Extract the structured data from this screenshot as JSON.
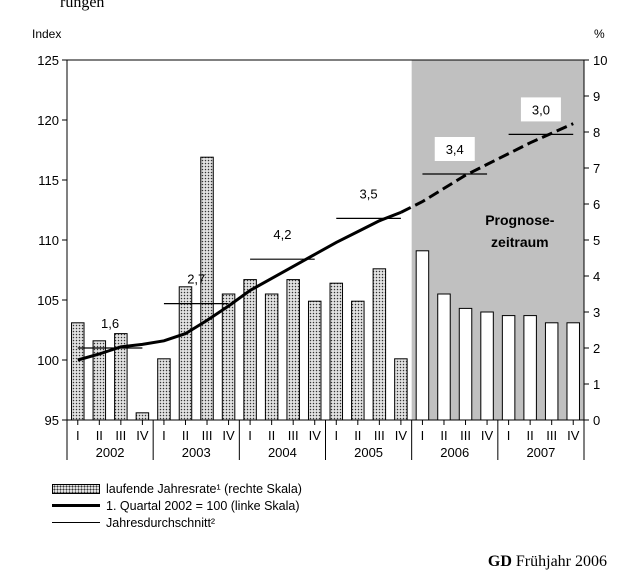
{
  "header_text": "rungen",
  "chart_data": {
    "type": "bar+line",
    "left_axis": {
      "unit": "Index",
      "ylim": [
        95,
        125
      ],
      "ticks": [
        95,
        100,
        105,
        110,
        115,
        120,
        125
      ]
    },
    "right_axis": {
      "unit": "%",
      "ylim": [
        0,
        10
      ],
      "ticks": [
        0,
        1,
        2,
        3,
        4,
        5,
        6,
        7,
        8,
        9,
        10
      ]
    },
    "quarters": [
      "I",
      "II",
      "III",
      "IV",
      "I",
      "II",
      "III",
      "IV",
      "I",
      "II",
      "III",
      "IV",
      "I",
      "II",
      "III",
      "IV",
      "I",
      "II",
      "III",
      "IV",
      "I",
      "II",
      "III",
      "IV"
    ],
    "years": [
      "2002",
      "2003",
      "2004",
      "2005",
      "2006",
      "2007"
    ],
    "forecast_start_index": 16,
    "forecast_label": [
      "Prognose-",
      "zeitraum"
    ],
    "series": [
      {
        "name": "laufende Jahresrate¹ (rechte Skala)",
        "axis": "right",
        "kind": "bar",
        "values": [
          2.7,
          2.2,
          2.4,
          0.2,
          1.7,
          3.7,
          7.3,
          3.5,
          3.9,
          3.5,
          3.9,
          3.3,
          3.8,
          3.3,
          4.2,
          1.7,
          4.7,
          3.5,
          3.1,
          3.0,
          2.9,
          2.9,
          2.7,
          2.7
        ]
      },
      {
        "name": "1. Quartal 2002 = 100 (linke Skala)",
        "axis": "left",
        "kind": "line",
        "values": [
          100.0,
          100.5,
          101.1,
          101.3,
          101.6,
          102.2,
          103.3,
          104.5,
          105.8,
          106.8,
          107.8,
          108.8,
          109.8,
          110.7,
          111.6,
          112.3,
          113.2,
          114.3,
          115.4,
          116.3,
          117.2,
          118.1,
          118.9,
          119.7
        ]
      },
      {
        "name": "Jahresdurchschnitt²",
        "axis": "left",
        "kind": "step",
        "values": [
          101.0,
          104.7,
          108.4,
          111.8,
          115.5,
          118.8
        ]
      }
    ],
    "annotations": [
      "1,6",
      "2,7",
      "4,2",
      "3,5",
      "3,4",
      "3,0"
    ]
  },
  "legend": [
    {
      "label": "laufende Jahresrate¹ (rechte Skala)"
    },
    {
      "label": "1. Quartal 2002 = 100 (linke Skala)"
    },
    {
      "label": "Jahresdurchschnitt²"
    }
  ],
  "source": {
    "bold": "GD",
    "rest": " Frühjahr 2006"
  },
  "colors": {
    "bar_fill": "#e2e2e2",
    "forecast_bg": "#c0c0c0",
    "line": "#000000"
  }
}
